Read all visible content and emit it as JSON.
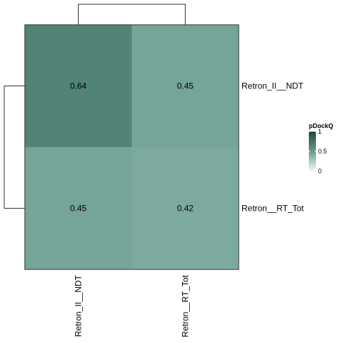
{
  "chart_data": {
    "type": "heatmap",
    "rows": [
      "Retron_II__NDT",
      "Retron__RT_Tot"
    ],
    "columns": [
      "Retron_II__NDT",
      "Retron__RT_Tot"
    ],
    "values": [
      [
        0.64,
        0.45
      ],
      [
        0.45,
        0.42
      ]
    ],
    "cell_labels": [
      [
        "0.64",
        "0.45"
      ],
      [
        "0.45",
        "0.42"
      ]
    ],
    "legend": {
      "title": "pDockQ",
      "min": 0,
      "max": 1,
      "ticks": [
        0,
        0.5,
        1
      ],
      "tick_labels": [
        "0",
        "0.5",
        "1"
      ],
      "color_low": "#f7f9f8",
      "color_high": "#1c4a3c"
    },
    "row_dendrogram": true,
    "column_dendrogram": true,
    "legend_position": "right"
  }
}
